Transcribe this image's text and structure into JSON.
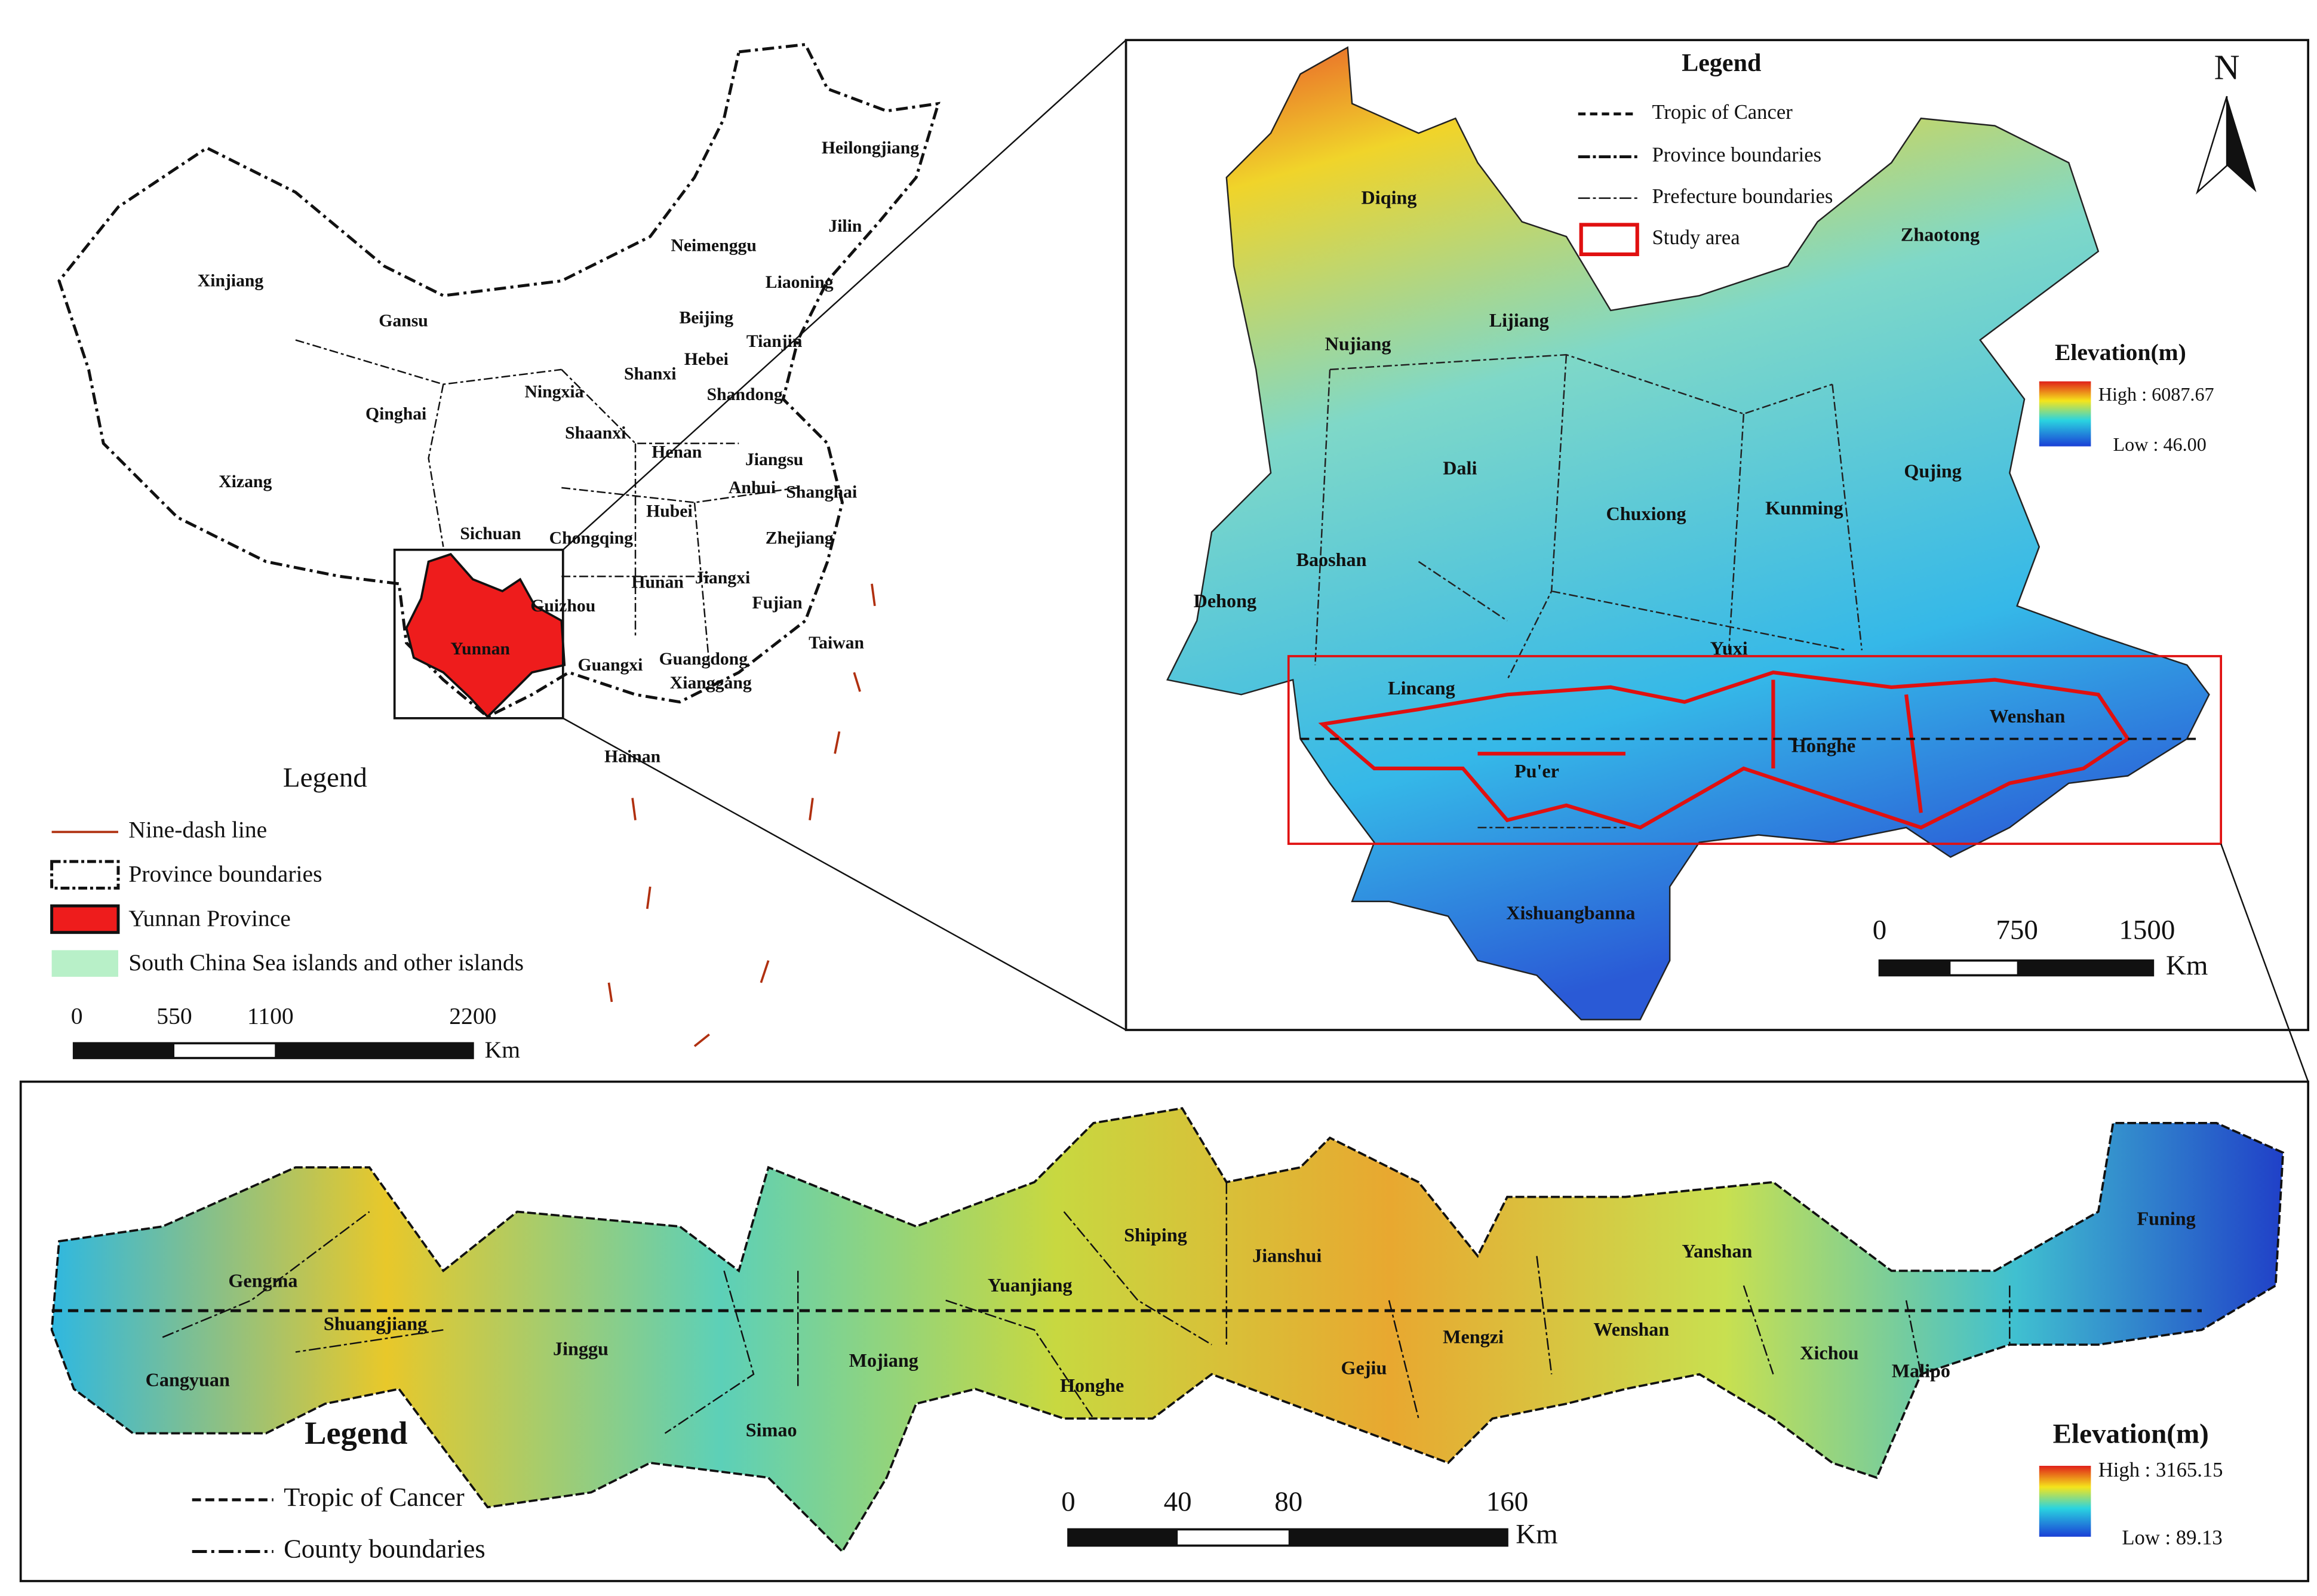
{
  "china_map": {
    "provinces": [
      "Heilongjiang",
      "Jilin",
      "Liaoning",
      "Neimenggu",
      "Xinjiang",
      "Gansu",
      "Beijing",
      "Tianjin",
      "Hebei",
      "Qinghai",
      "Ningxia",
      "Shanxi",
      "Shandong",
      "Shaanxi",
      "Henan",
      "Jiangsu",
      "Anhui",
      "Shanghai",
      "Xizang",
      "Hubei",
      "Sichuan",
      "Chongqing",
      "Zhejiang",
      "Guizhou",
      "Hunan",
      "Jiangxi",
      "Fujian",
      "Yunnan",
      "Guangxi",
      "Guangdong",
      "Taiwan",
      "Xianggang",
      "Hainan"
    ],
    "legend": {
      "title": "Legend",
      "items": [
        "Nine-dash line",
        "Province boundaries",
        "Yunnan Province",
        "South China Sea islands and other islands"
      ]
    },
    "scale": {
      "ticks": [
        0,
        550,
        1100,
        2200
      ],
      "unit": "Km"
    }
  },
  "yunnan_map": {
    "legend": {
      "title": "Legend",
      "items": [
        "Tropic of Cancer",
        "Province boundaries",
        "Prefecture boundaries",
        "Study area"
      ]
    },
    "north": "N",
    "elevation": {
      "title": "Elevation(m)",
      "high": "High : 6087.67",
      "low": "Low : 46.00"
    },
    "prefectures": [
      "Diqing",
      "Zhaotong",
      "Lijiang",
      "Nujiang",
      "Dali",
      "Qujing",
      "Chuxiong",
      "Kunming",
      "Baoshan",
      "Dehong",
      "Yuxi",
      "Lincang",
      "Wenshan",
      "Honghe",
      "Pu'er",
      "Xishuangbanna"
    ],
    "scale": {
      "ticks": [
        0,
        750,
        1500
      ],
      "unit": "Km"
    }
  },
  "study_area_map": {
    "counties": [
      "Gengma",
      "Shuangjiang",
      "Cangyuan",
      "Jinggu",
      "Simao",
      "Mojiang",
      "Yuanjiang",
      "Shiping",
      "Honghe",
      "Jianshui",
      "Gejiu",
      "Mengzi",
      "Wenshan",
      "Yanshan",
      "Xichou",
      "Malipo",
      "Funing"
    ],
    "legend": {
      "title": "Legend",
      "items": [
        "Tropic of Cancer",
        "County boundaries"
      ]
    },
    "elevation": {
      "title": "Elevation(m)",
      "high": "High : 3165.15",
      "low": "Low : 89.13"
    },
    "scale": {
      "ticks": [
        0,
        40,
        80,
        160
      ],
      "unit": "Km"
    }
  }
}
